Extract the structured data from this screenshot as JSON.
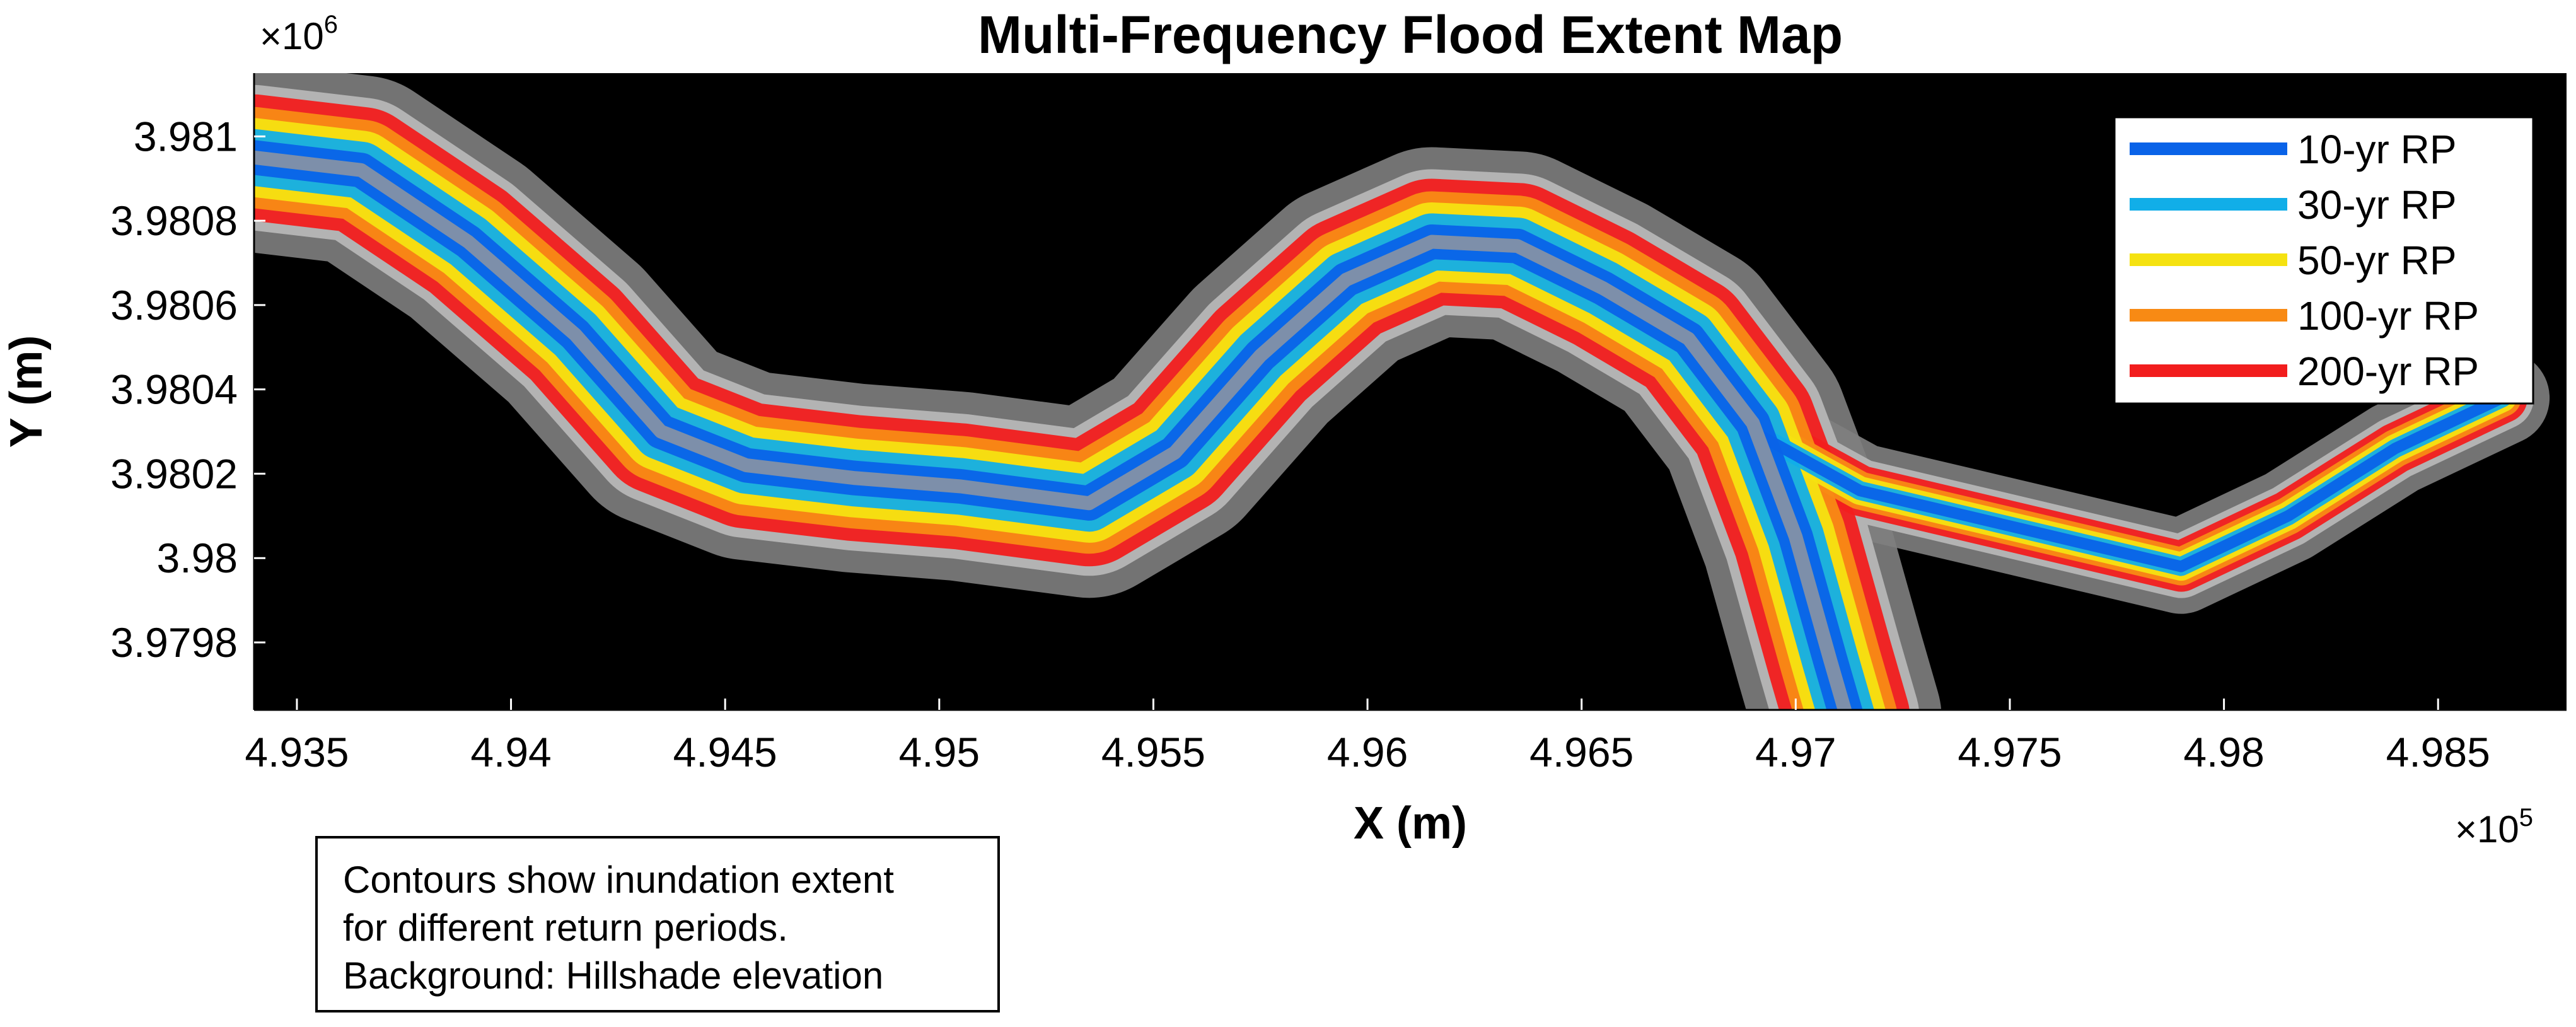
{
  "chart_data": {
    "type": "map",
    "title": "Multi-Frequency Flood Extent Map",
    "xlabel": "X (m)",
    "ylabel": "Y (m)",
    "x_exponent_label": "×10",
    "x_exponent": "5",
    "y_exponent_label": "×10",
    "y_exponent": "6",
    "xlim": [
      4.934,
      4.988
    ],
    "ylim": [
      3.97964,
      3.98115
    ],
    "x_ticks": [
      {
        "value": 4.935,
        "label": "4.935"
      },
      {
        "value": 4.94,
        "label": "4.94"
      },
      {
        "value": 4.945,
        "label": "4.945"
      },
      {
        "value": 4.95,
        "label": "4.95"
      },
      {
        "value": 4.955,
        "label": "4.955"
      },
      {
        "value": 4.96,
        "label": "4.96"
      },
      {
        "value": 4.965,
        "label": "4.965"
      },
      {
        "value": 4.97,
        "label": "4.97"
      },
      {
        "value": 4.975,
        "label": "4.975"
      },
      {
        "value": 4.98,
        "label": "4.98"
      },
      {
        "value": 4.985,
        "label": "4.985"
      }
    ],
    "y_ticks": [
      {
        "value": 3.9798,
        "label": "3.9798"
      },
      {
        "value": 3.98,
        "label": "3.98"
      },
      {
        "value": 3.9802,
        "label": "3.9802"
      },
      {
        "value": 3.9804,
        "label": "3.9804"
      },
      {
        "value": 3.9806,
        "label": "3.9806"
      },
      {
        "value": 3.9808,
        "label": "3.9808"
      },
      {
        "value": 3.981,
        "label": "3.981"
      }
    ],
    "background": "Hillshade elevation",
    "river_centerline": [
      [
        4.934,
        3.98095
      ],
      [
        4.9365,
        3.98092
      ],
      [
        4.939,
        3.98075
      ],
      [
        4.9415,
        3.98053
      ],
      [
        4.9435,
        3.9803
      ],
      [
        4.9455,
        3.98022
      ],
      [
        4.948,
        3.98019
      ],
      [
        4.9505,
        3.98017
      ],
      [
        4.9535,
        3.98013
      ],
      [
        4.9555,
        3.98025
      ],
      [
        4.9575,
        3.98048
      ],
      [
        4.9595,
        3.98066
      ],
      [
        4.9615,
        3.98075
      ],
      [
        4.9635,
        3.98074
      ],
      [
        4.9655,
        3.98064
      ],
      [
        4.9675,
        3.98052
      ],
      [
        4.969,
        3.98032
      ],
      [
        4.97,
        3.98005
      ],
      [
        4.9708,
        3.97976
      ],
      [
        4.9712,
        3.97962
      ]
    ],
    "side_channel": [
      [
        4.969,
        3.9803
      ],
      [
        4.9715,
        3.98016
      ],
      [
        4.974,
        3.9801
      ],
      [
        4.9765,
        3.98004
      ],
      [
        4.979,
        3.97998
      ],
      [
        4.9815,
        3.9801
      ],
      [
        4.984,
        3.98026
      ],
      [
        4.9865,
        3.98038
      ]
    ],
    "series": [
      {
        "name": "10-yr RP",
        "return_period": 10,
        "color": "#0a63e8"
      },
      {
        "name": "30-yr RP",
        "return_period": 30,
        "color": "#11aee8"
      },
      {
        "name": "50-yr RP",
        "return_period": 50,
        "color": "#f5e211"
      },
      {
        "name": "100-yr RP",
        "return_period": 100,
        "color": "#f88a14"
      },
      {
        "name": "200-yr RP",
        "return_period": 200,
        "color": "#f21d1d"
      }
    ],
    "legend_position": "top-right"
  },
  "annotation": {
    "lines": [
      "Contours show inundation extent",
      "for different return periods.",
      "Background: Hillshade elevation"
    ]
  }
}
